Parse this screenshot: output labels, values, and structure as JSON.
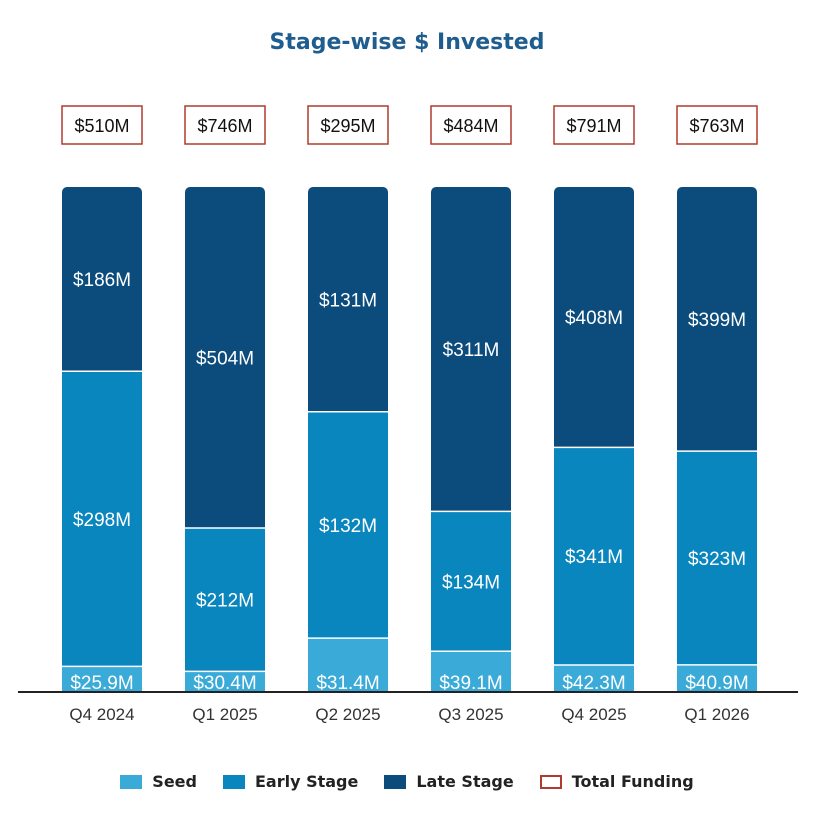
{
  "chart_data": {
    "type": "bar",
    "stacked": true,
    "title": "Stage-wise $ Invested",
    "categories": [
      "Q4 2024",
      "Q1 2025",
      "Q2 2025",
      "Q3 2025",
      "Q4 2025",
      "Q1 2026"
    ],
    "series": [
      {
        "name": "Seed",
        "color": "#3aaad8",
        "values": [
          25.9,
          30.4,
          31.4,
          39.1,
          42.3,
          40.9
        ],
        "labels": [
          "$25.9M",
          "$30.4M",
          "$31.4M",
          "$39.1M",
          "$42.3M",
          "$40.9M"
        ]
      },
      {
        "name": "Early Stage",
        "color": "#0a86bf",
        "values": [
          298,
          212,
          132,
          134,
          341,
          323
        ],
        "labels": [
          "$298M",
          "$212M",
          "$132M",
          "$134M",
          "$341M",
          "$323M"
        ]
      },
      {
        "name": "Late Stage",
        "color": "#0b4c7d",
        "values": [
          186,
          504,
          131,
          311,
          408,
          399
        ],
        "labels": [
          "$186M",
          "$504M",
          "$131M",
          "$311M",
          "$408M",
          "$399M"
        ]
      }
    ],
    "totals": {
      "name": "Total Funding",
      "values": [
        510,
        746,
        295,
        484,
        791,
        763
      ],
      "labels": [
        "$510M",
        "$746M",
        "$295M",
        "$484M",
        "$791M",
        "$763M"
      ],
      "border_color": "#b03a2e"
    },
    "xlabel": "",
    "ylabel": "",
    "grid": false,
    "legend_position": "bottom"
  }
}
